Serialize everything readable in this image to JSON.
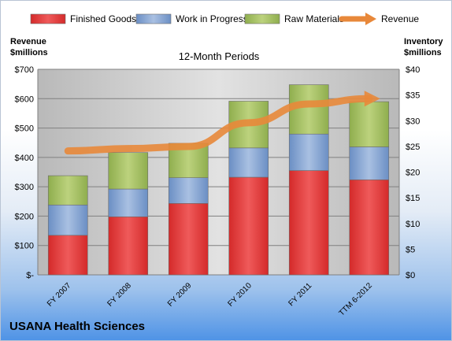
{
  "chart_data": {
    "type": "bar",
    "subtype": "stacked bar with line overlay",
    "title": "12-Month Periods",
    "company": "USANA Health Sciences",
    "categories": [
      "FY 2007",
      "FY 2008",
      "FY 2009",
      "FY 2010",
      "FY 2011",
      "TTM 6-2012"
    ],
    "left_axis": {
      "label_line1": "Revenue",
      "label_line2": "$millions",
      "ticks": [
        "$-",
        "$100",
        "$200",
        "$300",
        "$400",
        "$500",
        "$600",
        "$700"
      ],
      "min": 0,
      "max": 700,
      "step": 100
    },
    "right_axis": {
      "label_line1": "Inventory",
      "label_line2": "$millions",
      "ticks": [
        "$0",
        "$5",
        "$10",
        "$15",
        "$20",
        "$25",
        "$30",
        "$35",
        "$40"
      ],
      "min": 0,
      "max": 40,
      "step": 5
    },
    "series": [
      {
        "name": "Finished Goods",
        "axis": "right",
        "kind": "bar",
        "color": "#d42a2a",
        "values": [
          7.7,
          11.3,
          13.9,
          19.0,
          20.3,
          18.5
        ]
      },
      {
        "name": "Work in Progress",
        "axis": "right",
        "kind": "bar",
        "color": "#6b8fc4",
        "values": [
          5.9,
          5.4,
          5.0,
          5.7,
          7.1,
          6.4
        ]
      },
      {
        "name": "Raw Materials",
        "axis": "right",
        "kind": "bar",
        "color": "#8fae4e",
        "values": [
          5.7,
          7.1,
          6.7,
          9.1,
          9.6,
          8.8
        ]
      },
      {
        "name": "Revenue",
        "axis": "left",
        "kind": "line",
        "color": "#e8883a",
        "values": [
          422,
          430,
          437,
          518,
          582,
          600
        ]
      }
    ],
    "legend_position": "top",
    "grid": true
  }
}
